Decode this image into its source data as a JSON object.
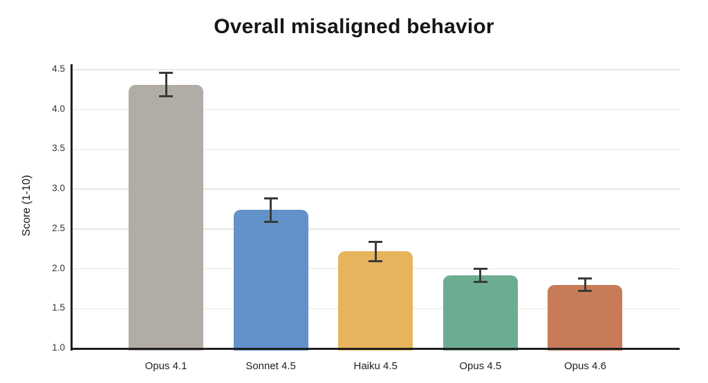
{
  "chart_data": {
    "type": "bar",
    "title": "Overall misaligned behavior",
    "ylabel": "Score (1-10)",
    "xlabel": "",
    "ylim": [
      1.0,
      4.6
    ],
    "ytick_labels": [
      "1.0",
      "1.5",
      "2.0",
      "2.5",
      "3.0",
      "3.5",
      "4.0",
      "4.5"
    ],
    "ytick_values": [
      1.0,
      1.5,
      2.0,
      2.5,
      3.0,
      3.5,
      4.0,
      4.5
    ],
    "grid": true,
    "legend": "none",
    "categories": [
      "Opus 4.1",
      "Sonnet 4.5",
      "Haiku 4.5",
      "Opus 4.5",
      "Opus 4.6"
    ],
    "values": [
      4.31,
      2.74,
      2.22,
      1.92,
      1.8
    ],
    "error_low": [
      4.17,
      2.59,
      2.1,
      1.84,
      1.72
    ],
    "error_high": [
      4.46,
      2.88,
      2.34,
      2.0,
      1.88
    ],
    "bar_colors": [
      "#b1ada6",
      "#6292c9",
      "#e7b45e",
      "#6cad92",
      "#c87b58"
    ],
    "error_bar_color": "#3a3a38",
    "axis_color": "#1f1f1f",
    "gridline_color": "#e8e7e2",
    "background_color": "#ffffff"
  }
}
